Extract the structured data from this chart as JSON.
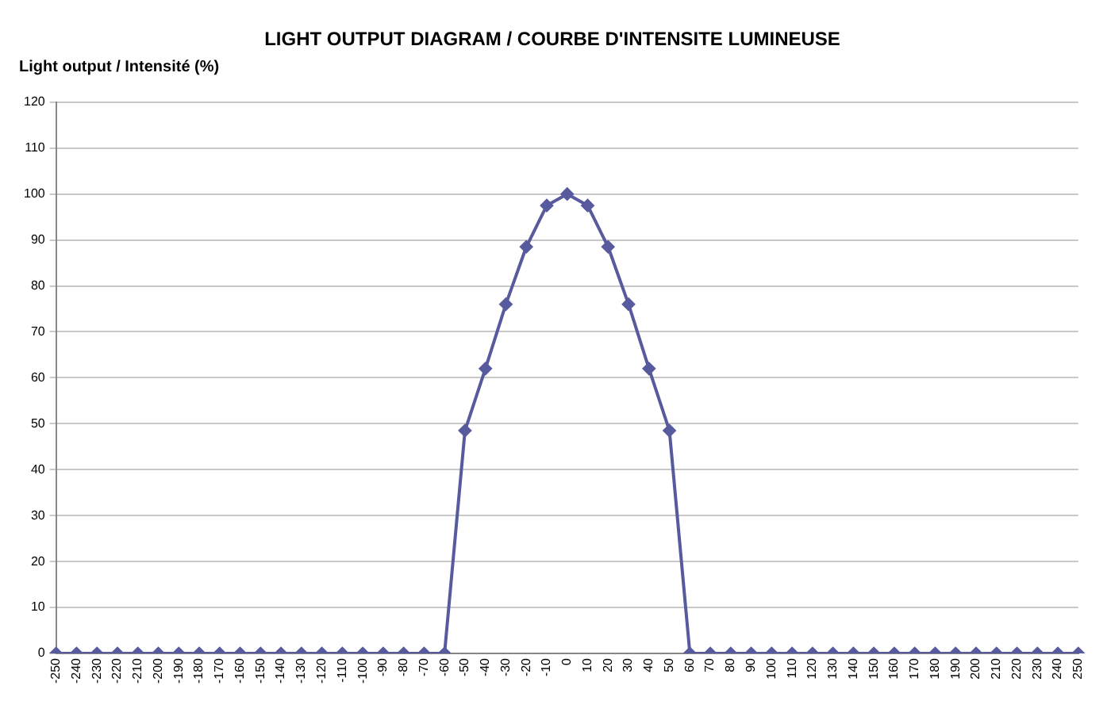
{
  "chart_data": {
    "type": "line",
    "title": "LIGHT OUTPUT DIAGRAM / COURBE D'INTENSITE LUMINEUSE",
    "ylabel": "Light output / Intensité (%)",
    "categories": [
      "-250",
      "-240",
      "-230",
      "-220",
      "-210",
      "-200",
      "-190",
      "-180",
      "-170",
      "-160",
      "-150",
      "-140",
      "-130",
      "-120",
      "-110",
      "-100",
      "-90",
      "-80",
      "-70",
      "-60",
      "-50",
      "-40",
      "-30",
      "-20",
      "-10",
      "0",
      "10",
      "20",
      "30",
      "40",
      "50",
      "60",
      "70",
      "80",
      "90",
      "100",
      "110",
      "120",
      "130",
      "140",
      "150",
      "160",
      "170",
      "180",
      "190",
      "200",
      "210",
      "220",
      "230",
      "240",
      "250"
    ],
    "series": [
      {
        "color": "#585a9e",
        "values": [
          0,
          0,
          0,
          0,
          0,
          0,
          0,
          0,
          0,
          0,
          0,
          0,
          0,
          0,
          0,
          0,
          0,
          0,
          0,
          0,
          48.5,
          62,
          76,
          88.5,
          97.5,
          100,
          97.5,
          88.5,
          76,
          62,
          48.5,
          0,
          0,
          0,
          0,
          0,
          0,
          0,
          0,
          0,
          0,
          0,
          0,
          0,
          0,
          0,
          0,
          0,
          0,
          0,
          0
        ]
      }
    ],
    "ylim": [
      0,
      120
    ],
    "yticks": [
      0,
      10,
      20,
      30,
      40,
      50,
      60,
      70,
      80,
      90,
      100,
      110,
      120
    ],
    "grid": "y",
    "legend": false,
    "marker": "diamond",
    "line_style": "solid"
  }
}
